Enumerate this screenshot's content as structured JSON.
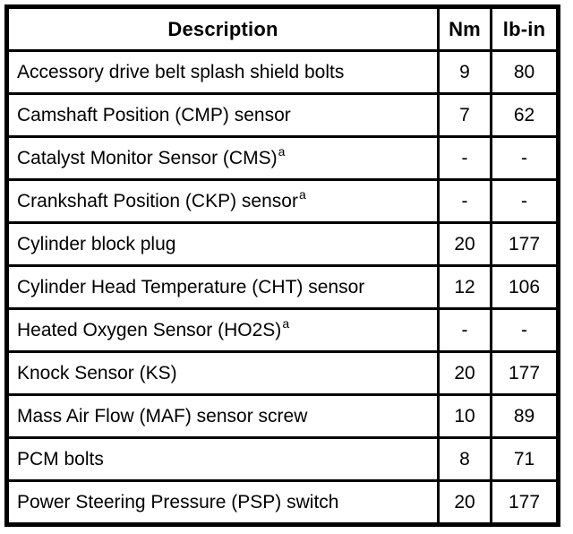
{
  "table": {
    "name": "engine-torque-specifications",
    "headers": {
      "description": "Description",
      "nm": "Nm",
      "lbin": "lb-in"
    },
    "rows": [
      {
        "desc": "Accessory drive belt splash shield bolts",
        "sup": "",
        "nm": "9",
        "lbin": "80"
      },
      {
        "desc": "Camshaft Position (CMP) sensor",
        "sup": "",
        "nm": "7",
        "lbin": "62"
      },
      {
        "desc": "Catalyst Monitor Sensor (CMS)",
        "sup": "a",
        "nm": "-",
        "lbin": "-"
      },
      {
        "desc": "Crankshaft Position (CKP) sensor",
        "sup": "a",
        "nm": "-",
        "lbin": "-"
      },
      {
        "desc": "Cylinder block plug",
        "sup": "",
        "nm": "20",
        "lbin": "177"
      },
      {
        "desc": "Cylinder Head Temperature (CHT) sensor",
        "sup": "",
        "nm": "12",
        "lbin": "106"
      },
      {
        "desc": "Heated Oxygen Sensor (HO2S)",
        "sup": "a",
        "nm": "-",
        "lbin": "-"
      },
      {
        "desc": "Knock Sensor (KS)",
        "sup": "",
        "nm": "20",
        "lbin": "177"
      },
      {
        "desc": "Mass Air Flow (MAF) sensor screw",
        "sup": "",
        "nm": "10",
        "lbin": "89"
      },
      {
        "desc": "PCM bolts",
        "sup": "",
        "nm": "8",
        "lbin": "71"
      },
      {
        "desc": "Power Steering Pressure (PSP) switch",
        "sup": "",
        "nm": "20",
        "lbin": "177"
      }
    ]
  }
}
